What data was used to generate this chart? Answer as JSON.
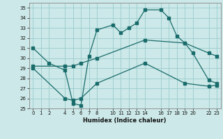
{
  "xlabel": "Humidex (Indice chaleur)",
  "bg_color": "#cce8e8",
  "grid_color": "#99cccc",
  "line_color": "#1a6b6b",
  "ylim": [
    25,
    35.5
  ],
  "xlim": [
    -0.5,
    23.5
  ],
  "yticks": [
    25,
    26,
    27,
    28,
    29,
    30,
    31,
    32,
    33,
    34,
    35
  ],
  "xticks": [
    0,
    1,
    2,
    4,
    5,
    6,
    7,
    8,
    10,
    11,
    12,
    13,
    14,
    16,
    17,
    18,
    19,
    20,
    22,
    23
  ],
  "line1_x": [
    0,
    2,
    4,
    5,
    6,
    7,
    8,
    10,
    11,
    12,
    13,
    14,
    16,
    17,
    18,
    19,
    20,
    22,
    23
  ],
  "line1_y": [
    31.0,
    29.5,
    28.8,
    25.5,
    25.3,
    30.2,
    32.8,
    33.3,
    32.5,
    33.0,
    33.5,
    34.8,
    34.8,
    34.0,
    32.2,
    31.5,
    30.5,
    27.8,
    27.5
  ],
  "line2_x": [
    0,
    4,
    5,
    6,
    8,
    14,
    19,
    22,
    23
  ],
  "line2_y": [
    29.2,
    29.2,
    29.2,
    29.5,
    30.0,
    31.8,
    31.5,
    30.5,
    30.2
  ],
  "line3_x": [
    0,
    4,
    5,
    6,
    8,
    14,
    19,
    22,
    23
  ],
  "line3_y": [
    29.0,
    26.0,
    25.8,
    26.0,
    27.5,
    29.5,
    27.5,
    27.2,
    27.3
  ]
}
